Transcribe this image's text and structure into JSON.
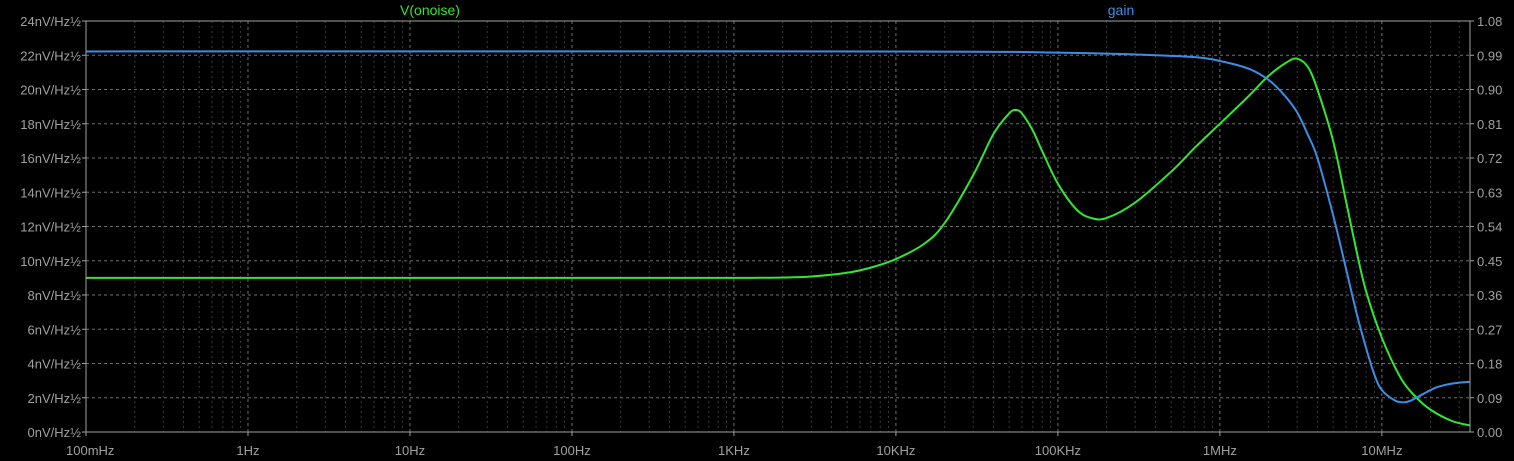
{
  "chart_data": {
    "type": "line",
    "x_scale": "log",
    "xlim": [
      0.1,
      35000000
    ],
    "x_ticks": [
      {
        "value": 0.1,
        "label": "100mHz"
      },
      {
        "value": 1,
        "label": "1Hz"
      },
      {
        "value": 10,
        "label": "10Hz"
      },
      {
        "value": 100,
        "label": "100Hz"
      },
      {
        "value": 1000,
        "label": "1KHz"
      },
      {
        "value": 10000,
        "label": "10KHz"
      },
      {
        "value": 100000,
        "label": "100KHz"
      },
      {
        "value": 1000000,
        "label": "1MHz"
      },
      {
        "value": 10000000,
        "label": "10MHz"
      }
    ],
    "y_left": {
      "range": [
        0,
        24
      ],
      "ticks": [
        {
          "value": 0,
          "label": "0nV/Hz½"
        },
        {
          "value": 2,
          "label": "2nV/Hz½"
        },
        {
          "value": 4,
          "label": "4nV/Hz½"
        },
        {
          "value": 6,
          "label": "6nV/Hz½"
        },
        {
          "value": 8,
          "label": "8nV/Hz½"
        },
        {
          "value": 10,
          "label": "10nV/Hz½"
        },
        {
          "value": 12,
          "label": "12nV/Hz½"
        },
        {
          "value": 14,
          "label": "14nV/Hz½"
        },
        {
          "value": 16,
          "label": "16nV/Hz½"
        },
        {
          "value": 18,
          "label": "18nV/Hz½"
        },
        {
          "value": 20,
          "label": "20nV/Hz½"
        },
        {
          "value": 22,
          "label": "22nV/Hz½"
        },
        {
          "value": 24,
          "label": "24nV/Hz½"
        }
      ]
    },
    "y_right": {
      "range": [
        0,
        1.08
      ],
      "ticks": [
        {
          "value": 0,
          "label": "0.00"
        },
        {
          "value": 0.09,
          "label": "0.09"
        },
        {
          "value": 0.18,
          "label": "0.18"
        },
        {
          "value": 0.27,
          "label": "0.27"
        },
        {
          "value": 0.36,
          "label": "0.36"
        },
        {
          "value": 0.45,
          "label": "0.45"
        },
        {
          "value": 0.54,
          "label": "0.54"
        },
        {
          "value": 0.63,
          "label": "0.63"
        },
        {
          "value": 0.72,
          "label": "0.72"
        },
        {
          "value": 0.81,
          "label": "0.81"
        },
        {
          "value": 0.9,
          "label": "0.90"
        },
        {
          "value": 0.99,
          "label": "0.99"
        },
        {
          "value": 1.08,
          "label": "1.08"
        }
      ]
    },
    "grid": true,
    "series": [
      {
        "name": "V(onoise)",
        "axis": "left",
        "color": "#32e632",
        "points": [
          [
            0.1,
            9.0
          ],
          [
            100,
            9.0
          ],
          [
            1000,
            9.0
          ],
          [
            2000,
            9.02
          ],
          [
            3000,
            9.08
          ],
          [
            5000,
            9.3
          ],
          [
            7000,
            9.6
          ],
          [
            10000,
            10.1
          ],
          [
            15000,
            11.0
          ],
          [
            20000,
            12.2
          ],
          [
            30000,
            15.0
          ],
          [
            40000,
            17.4
          ],
          [
            50000,
            18.6
          ],
          [
            55000,
            18.8
          ],
          [
            60000,
            18.6
          ],
          [
            70000,
            17.6
          ],
          [
            80000,
            16.4
          ],
          [
            100000,
            14.5
          ],
          [
            130000,
            13.0
          ],
          [
            160000,
            12.5
          ],
          [
            200000,
            12.5
          ],
          [
            300000,
            13.4
          ],
          [
            500000,
            15.2
          ],
          [
            700000,
            16.6
          ],
          [
            1000000,
            18.0
          ],
          [
            1500000,
            19.6
          ],
          [
            2000000,
            20.8
          ],
          [
            2600000,
            21.6
          ],
          [
            3000000,
            21.8
          ],
          [
            3500000,
            21.3
          ],
          [
            4000000,
            20.0
          ],
          [
            5000000,
            17.0
          ],
          [
            6000000,
            13.5
          ],
          [
            7000000,
            10.5
          ],
          [
            8000000,
            8.2
          ],
          [
            10000000,
            5.5
          ],
          [
            13000000,
            3.2
          ],
          [
            16000000,
            2.1
          ],
          [
            20000000,
            1.3
          ],
          [
            27000000,
            0.65
          ],
          [
            35000000,
            0.38
          ]
        ]
      },
      {
        "name": "gain",
        "axis": "right",
        "color": "#3a8ee6",
        "points": [
          [
            0.1,
            1.0
          ],
          [
            10000,
            1.0
          ],
          [
            100000,
            0.997
          ],
          [
            300000,
            0.992
          ],
          [
            700000,
            0.985
          ],
          [
            1000000,
            0.975
          ],
          [
            1500000,
            0.955
          ],
          [
            2000000,
            0.925
          ],
          [
            2500000,
            0.885
          ],
          [
            3000000,
            0.84
          ],
          [
            3500000,
            0.78
          ],
          [
            4000000,
            0.72
          ],
          [
            5000000,
            0.57
          ],
          [
            6000000,
            0.43
          ],
          [
            7000000,
            0.31
          ],
          [
            8000000,
            0.22
          ],
          [
            9000000,
            0.15
          ],
          [
            10000000,
            0.11
          ],
          [
            12000000,
            0.083
          ],
          [
            13500000,
            0.078
          ],
          [
            15000000,
            0.082
          ],
          [
            18000000,
            0.1
          ],
          [
            22000000,
            0.118
          ],
          [
            28000000,
            0.128
          ],
          [
            35000000,
            0.132
          ]
        ]
      }
    ]
  }
}
